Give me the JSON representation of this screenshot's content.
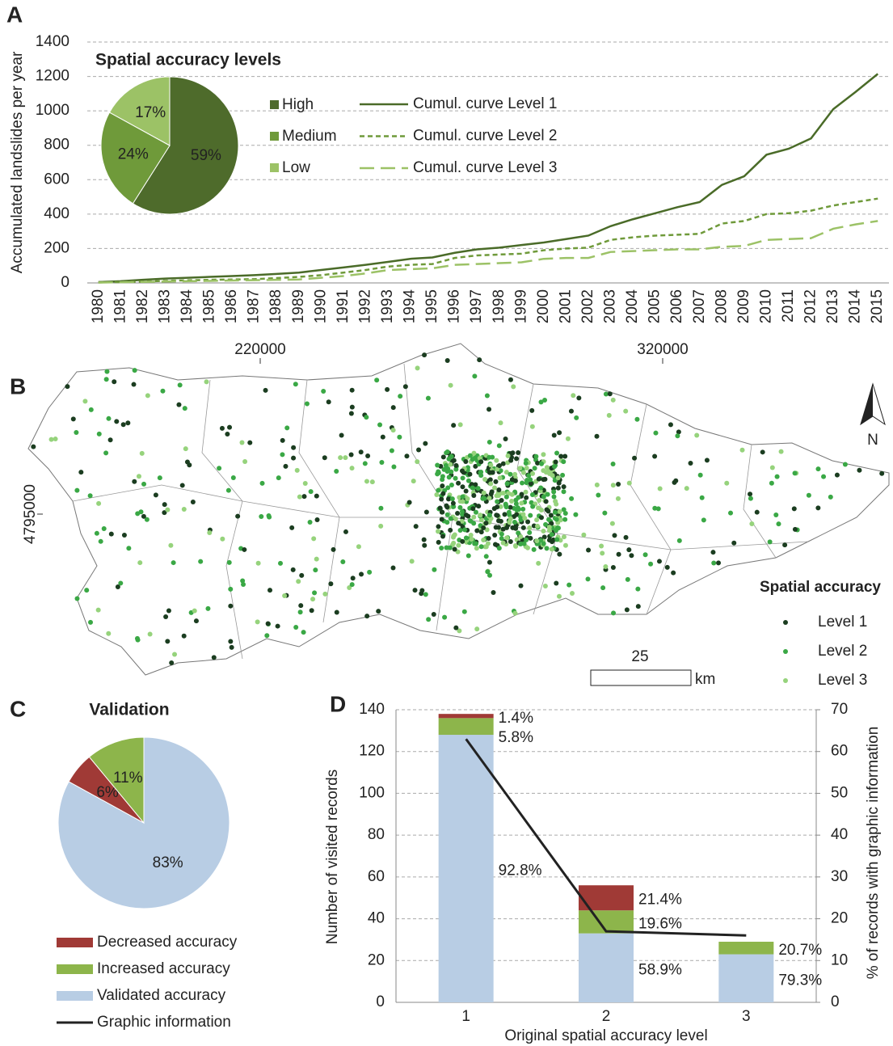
{
  "chart_data": [
    {
      "panel_label": "A",
      "type": "line",
      "y_label": "Accumulated landslides per year",
      "categories": [
        "1980",
        "1981",
        "1982",
        "1983",
        "1984",
        "1985",
        "1986",
        "1987",
        "1988",
        "1989",
        "1990",
        "1991",
        "1992",
        "1993",
        "1994",
        "1995",
        "1996",
        "1997",
        "1998",
        "1999",
        "2000",
        "2001",
        "2002",
        "2003",
        "2004",
        "2005",
        "2006",
        "2007",
        "2008",
        "2009",
        "2010",
        "2011",
        "2012",
        "2013",
        "2014",
        "2015"
      ],
      "ylim": [
        0,
        1400
      ],
      "yticks": [
        0,
        200,
        400,
        600,
        800,
        1000,
        1200,
        1400
      ],
      "grid": true,
      "series": [
        {
          "name": "Cumul. curve Level 1",
          "color": "#4a6b28",
          "dash": "solid",
          "values": [
            5,
            10,
            18,
            25,
            30,
            35,
            40,
            45,
            52,
            60,
            75,
            90,
            105,
            122,
            140,
            148,
            175,
            195,
            205,
            220,
            235,
            255,
            275,
            330,
            370,
            405,
            440,
            470,
            570,
            620,
            745,
            780,
            840,
            1010,
            1110,
            1215
          ]
        },
        {
          "name": "Cumul. curve Level 2",
          "color": "#6f9a3a",
          "dash": "short",
          "values": [
            3,
            5,
            8,
            12,
            15,
            18,
            20,
            22,
            28,
            35,
            45,
            60,
            75,
            95,
            105,
            110,
            145,
            160,
            165,
            170,
            190,
            200,
            205,
            250,
            265,
            275,
            280,
            285,
            345,
            360,
            400,
            405,
            420,
            450,
            470,
            490
          ]
        },
        {
          "name": "Cumul. curve Level 3",
          "color": "#9cc266",
          "dash": "long",
          "values": [
            2,
            4,
            6,
            8,
            10,
            12,
            14,
            16,
            18,
            20,
            30,
            40,
            55,
            75,
            80,
            85,
            105,
            110,
            115,
            120,
            140,
            145,
            145,
            180,
            185,
            190,
            195,
            195,
            210,
            215,
            250,
            255,
            260,
            315,
            340,
            360
          ]
        }
      ]
    },
    {
      "type": "pie",
      "title": "Spatial accuracy levels",
      "categories": [
        "High",
        "Medium",
        "Low"
      ],
      "values": [
        59,
        24,
        17
      ],
      "value_labels": [
        "59%",
        "24%",
        "17%"
      ],
      "colors": [
        "#4e6b2b",
        "#6f9a3a",
        "#9cc266"
      ]
    },
    {
      "panel_label": "C",
      "type": "pie",
      "title": "Validation",
      "categories": [
        "Validated accuracy",
        "Decreased accuracy",
        "Increased accuracy"
      ],
      "values": [
        83,
        6,
        11
      ],
      "value_labels": [
        "83%",
        "6%",
        "11%"
      ],
      "colors": [
        "#b8cde4",
        "#a03a36",
        "#8db54b"
      ]
    },
    {
      "panel_label": "D",
      "type": "bar",
      "stacked": true,
      "x_label": "Original spatial accuracy level",
      "y_label": "Number of visited records",
      "y2_label": "% of records with graphic information",
      "categories": [
        "1",
        "2",
        "3"
      ],
      "ylim": [
        0,
        140
      ],
      "yticks": [
        0,
        20,
        40,
        60,
        80,
        100,
        120,
        140
      ],
      "y2lim": [
        0,
        70
      ],
      "y2ticks": [
        0,
        10,
        20,
        30,
        40,
        50,
        60,
        70
      ],
      "grid": true,
      "series": [
        {
          "color": "#b8cde4",
          "values": [
            128,
            33,
            23
          ],
          "share_labels": [
            "92.8%",
            "58.9%",
            "79.3%"
          ]
        },
        {
          "color": "#8db54b",
          "values": [
            8,
            11,
            6
          ],
          "share_labels": [
            "5.8%",
            "19.6%",
            "20.7%"
          ]
        },
        {
          "color": "#a03a36",
          "values": [
            2,
            12,
            0
          ],
          "share_labels": [
            "1.4%",
            "21.4%",
            null
          ]
        },
        {
          "name": "Graphic information",
          "type": "line",
          "axis": "y2",
          "color": "#222222",
          "values": [
            63,
            17,
            16
          ]
        }
      ]
    }
  ],
  "map": {
    "panel_label": "B",
    "xticks": [
      220000,
      320000
    ],
    "yticks": [
      4795000
    ],
    "legend_title": "Spatial accuracy",
    "legend": [
      {
        "name": "Level 1",
        "color": "#1b3d20"
      },
      {
        "name": "Level 2",
        "color": "#3aa845"
      },
      {
        "name": "Level 3",
        "color": "#96d37c"
      }
    ],
    "scale_label": "25",
    "scale_unit": "km",
    "north_label": "N"
  }
}
